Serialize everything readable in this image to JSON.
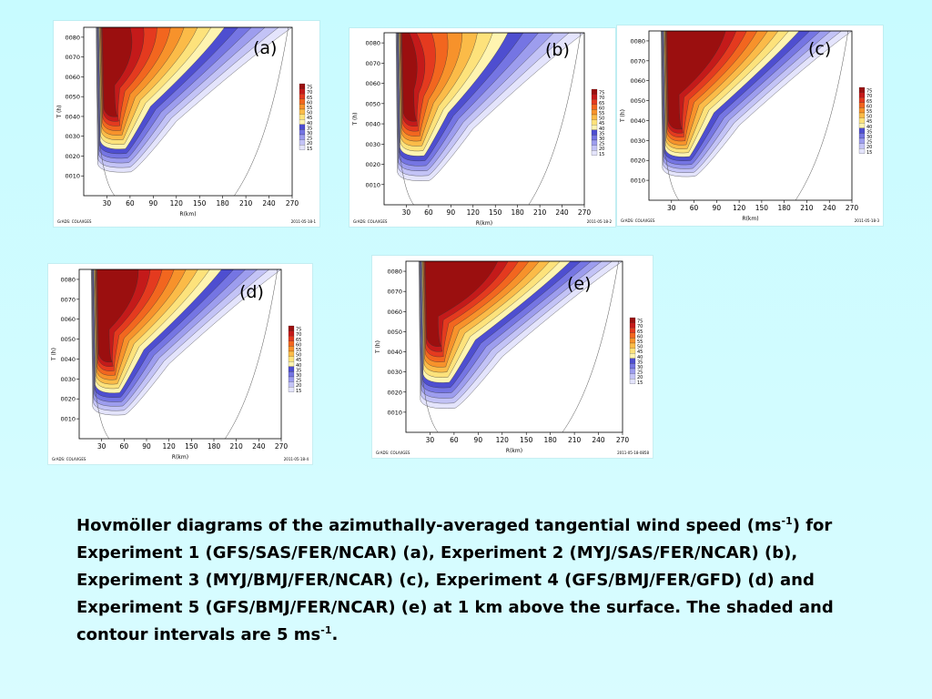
{
  "chart_data": [
    {
      "type": "heatmap",
      "panel_label": "(a)",
      "ylabel": "T (h)",
      "xlabel": "R(km)",
      "x_ticks": [
        "30",
        "60",
        "90",
        "120",
        "150",
        "180",
        "210",
        "240",
        "270"
      ],
      "y_ticks": [
        "0010",
        "0020",
        "0030",
        "0040",
        "0050",
        "0060",
        "0070",
        "0080"
      ],
      "xlim": [
        0,
        270
      ],
      "ylim": [
        0,
        85
      ],
      "colorbar_levels": [
        "75",
        "70",
        "65",
        "60",
        "55",
        "50",
        "45",
        "40",
        "35",
        "30",
        "25",
        "20",
        "15"
      ],
      "colorbar_colors": [
        "#9b0f0f",
        "#c41a1a",
        "#e43a1f",
        "#f2661f",
        "#f7922b",
        "#fbbb48",
        "#fde27b",
        "#fff4b0",
        "#4e4ed0",
        "#7575e3",
        "#9d9dee",
        "#c3c3f6",
        "#e4e4fc"
      ],
      "footer_left": "GrADS: COLA/IGES",
      "footer_right": "2011-05-18-1"
    },
    {
      "type": "heatmap",
      "panel_label": "(b)",
      "ylabel": "T (h)",
      "xlabel": "R(km)",
      "x_ticks": [
        "30",
        "60",
        "90",
        "120",
        "150",
        "180",
        "210",
        "240",
        "270"
      ],
      "y_ticks": [
        "0010",
        "0020",
        "0030",
        "0040",
        "0050",
        "0060",
        "0070",
        "0080"
      ],
      "xlim": [
        0,
        270
      ],
      "ylim": [
        0,
        85
      ],
      "colorbar_levels": [
        "75",
        "70",
        "65",
        "60",
        "55",
        "50",
        "45",
        "40",
        "35",
        "30",
        "25",
        "20",
        "15"
      ],
      "colorbar_colors": [
        "#9b0f0f",
        "#c41a1a",
        "#e43a1f",
        "#f2661f",
        "#f7922b",
        "#fbbb48",
        "#fde27b",
        "#fff4b0",
        "#4e4ed0",
        "#7575e3",
        "#9d9dee",
        "#c3c3f6",
        "#e4e4fc"
      ],
      "footer_left": "GrADS: COLA/IGES",
      "footer_right": "2011-05-18-2"
    },
    {
      "type": "heatmap",
      "panel_label": "(c)",
      "ylabel": "T (h)",
      "xlabel": "R(km)",
      "x_ticks": [
        "30",
        "60",
        "90",
        "120",
        "150",
        "180",
        "210",
        "240",
        "270"
      ],
      "y_ticks": [
        "0010",
        "0020",
        "0030",
        "0040",
        "0050",
        "0060",
        "0070",
        "0080"
      ],
      "xlim": [
        0,
        270
      ],
      "ylim": [
        0,
        85
      ],
      "colorbar_levels": [
        "75",
        "70",
        "65",
        "60",
        "55",
        "50",
        "45",
        "40",
        "35",
        "30",
        "25",
        "20",
        "15"
      ],
      "colorbar_colors": [
        "#9b0f0f",
        "#c41a1a",
        "#e43a1f",
        "#f2661f",
        "#f7922b",
        "#fbbb48",
        "#fde27b",
        "#fff4b0",
        "#4e4ed0",
        "#7575e3",
        "#9d9dee",
        "#c3c3f6",
        "#e4e4fc"
      ],
      "footer_left": "GrADS: COLA/IGES",
      "footer_right": "2011-05-18-3"
    },
    {
      "type": "heatmap",
      "panel_label": "(d)",
      "ylabel": "T (h)",
      "xlabel": "R(km)",
      "x_ticks": [
        "30",
        "60",
        "90",
        "120",
        "150",
        "180",
        "210",
        "240",
        "270"
      ],
      "y_ticks": [
        "0010",
        "0020",
        "0030",
        "0040",
        "0050",
        "0060",
        "0070",
        "0080"
      ],
      "xlim": [
        0,
        270
      ],
      "ylim": [
        0,
        85
      ],
      "colorbar_levels": [
        "75",
        "70",
        "65",
        "60",
        "55",
        "50",
        "45",
        "40",
        "35",
        "30",
        "25",
        "20",
        "15"
      ],
      "colorbar_colors": [
        "#9b0f0f",
        "#c41a1a",
        "#e43a1f",
        "#f2661f",
        "#f7922b",
        "#fbbb48",
        "#fde27b",
        "#fff4b0",
        "#4e4ed0",
        "#7575e3",
        "#9d9dee",
        "#c3c3f6",
        "#e4e4fc"
      ],
      "footer_left": "GrADS: COLA/IGES",
      "footer_right": "2011-05-18-4"
    },
    {
      "type": "heatmap",
      "panel_label": "(e)",
      "ylabel": "T (h)",
      "xlabel": "R(km)",
      "x_ticks": [
        "30",
        "60",
        "90",
        "120",
        "150",
        "180",
        "210",
        "240",
        "270"
      ],
      "y_ticks": [
        "0010",
        "0020",
        "0030",
        "0040",
        "0050",
        "0060",
        "0070",
        "0080"
      ],
      "xlim": [
        0,
        270
      ],
      "ylim": [
        0,
        85
      ],
      "colorbar_levels": [
        "75",
        "70",
        "65",
        "60",
        "55",
        "50",
        "45",
        "40",
        "35",
        "30",
        "25",
        "20",
        "15"
      ],
      "colorbar_colors": [
        "#9b0f0f",
        "#c41a1a",
        "#e43a1f",
        "#f2661f",
        "#f7922b",
        "#fbbb48",
        "#fde27b",
        "#fff4b0",
        "#4e4ed0",
        "#7575e3",
        "#9d9dee",
        "#c3c3f6",
        "#e4e4fc"
      ],
      "footer_left": "GrADS: COLA/IGES",
      "footer_right": "2011-05-18-0858"
    }
  ],
  "caption": {
    "line1_a": "Hovmöller diagrams of the azimuthally-averaged tangential wind speed (ms",
    "line1_sup": "-1",
    "line1_b": ") for",
    "line2": "Experiment 1 (GFS/SAS/FER/NCAR) (a), Experiment 2 (MYJ/SAS/FER/NCAR) (b),",
    "line3": "Experiment 3 (MYJ/BMJ/FER/NCAR) (c), Experiment 4 (GFS/BMJ/FER/GFD) (d) and",
    "line4": "Experiment 5 (GFS/BMJ/FER/NCAR) (e) at 1 km above the surface.  The shaded and",
    "line5_a": "contour intervals are 5 ms",
    "line5_sup": "-1",
    "line5_b": "."
  }
}
